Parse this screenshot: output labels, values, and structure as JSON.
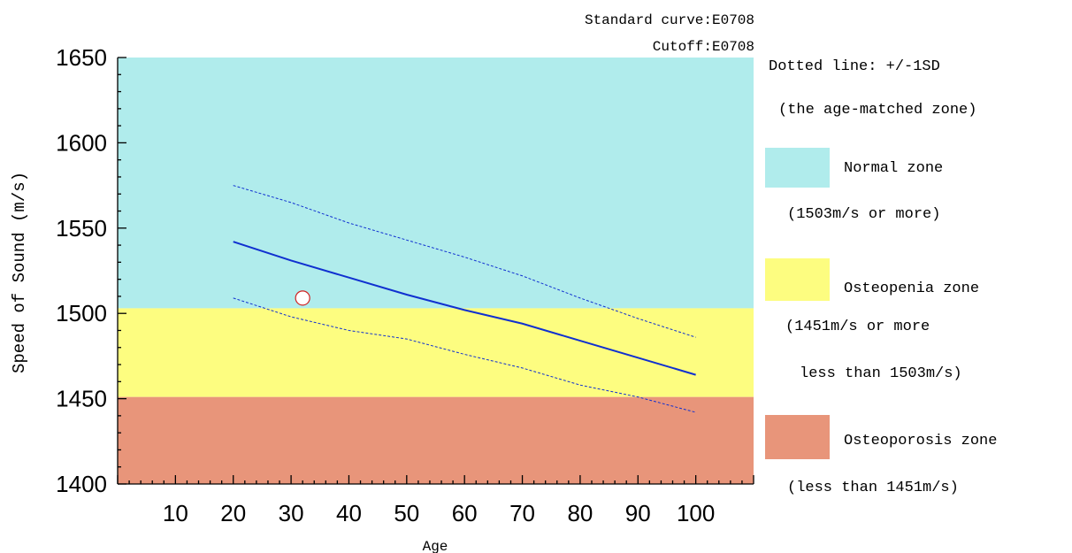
{
  "header": {
    "standard_curve": "Standard curve:E0708",
    "cutoff": "Cutoff:E0708"
  },
  "legend": {
    "dotted_line_1": "Dotted line: +/-1SD",
    "dotted_line_2": "(the age-matched zone)",
    "normal_label": "Normal zone",
    "normal_range": "(1503m/s or more)",
    "osteopenia_label": "Osteopenia zone",
    "osteopenia_range_1": "(1451m/s or more",
    "osteopenia_range_2": "less than 1503m/s)",
    "osteoporosis_label": "Osteoporosis zone",
    "osteoporosis_range": "(less than 1451m/s)"
  },
  "colors": {
    "normal": "#b0ecec",
    "osteopenia": "#fdfd80",
    "osteoporosis": "#e8957a",
    "curve": "#1030d0",
    "marker": "#d02020"
  },
  "chart_data": {
    "type": "line",
    "xlabel": "Age",
    "ylabel": "Speed of Sound (m/s)",
    "xlim": [
      0,
      110
    ],
    "ylim": [
      1400,
      1650
    ],
    "x_ticks": [
      10,
      20,
      30,
      40,
      50,
      60,
      70,
      80,
      90,
      100
    ],
    "y_ticks": [
      1400,
      1450,
      1500,
      1550,
      1600,
      1650
    ],
    "zones": [
      {
        "name": "Normal zone",
        "min": 1503,
        "max": 1650
      },
      {
        "name": "Osteopenia zone",
        "min": 1451,
        "max": 1503
      },
      {
        "name": "Osteoporosis zone",
        "min": 1400,
        "max": 1451
      }
    ],
    "series": [
      {
        "style": "solid",
        "x": [
          20,
          30,
          40,
          50,
          60,
          70,
          80,
          90,
          100
        ],
        "y": [
          1542,
          1531,
          1521,
          1511,
          1502,
          1494,
          1484,
          1474,
          1464
        ]
      },
      {
        "style": "dotted",
        "x": [
          20,
          30,
          40,
          50,
          60,
          70,
          80,
          90,
          100
        ],
        "y": [
          1575,
          1565,
          1553,
          1543,
          1533,
          1522,
          1509,
          1497,
          1486
        ]
      },
      {
        "style": "dotted",
        "x": [
          20,
          30,
          40,
          50,
          60,
          70,
          80,
          90,
          100
        ],
        "y": [
          1509,
          1498,
          1490,
          1485,
          1476,
          1468,
          1458,
          1451,
          1442
        ]
      }
    ],
    "measurement": {
      "x": 32,
      "y": 1509
    }
  }
}
